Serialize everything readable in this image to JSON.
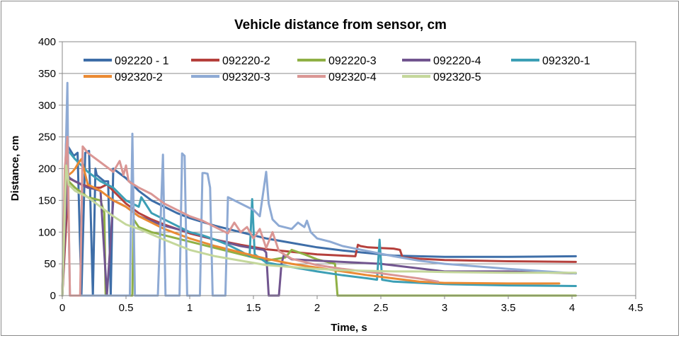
{
  "chart_data": {
    "type": "line",
    "title": "Vehicle distance from sensor, cm",
    "xlabel": "Time, s",
    "ylabel": "Distance, cm",
    "xlim": [
      0,
      4.5
    ],
    "ylim": [
      0,
      400
    ],
    "xticks": [
      "0",
      "0.5",
      "1",
      "1.5",
      "2",
      "2.5",
      "3",
      "3.5",
      "4",
      "4.5"
    ],
    "yticks": [
      "0",
      "50",
      "100",
      "150",
      "200",
      "250",
      "300",
      "350",
      "400"
    ],
    "grid": "horizontal major gridlines",
    "legend_position": "top, inside plot",
    "series": [
      {
        "name": "092220 - 1",
        "color": "#3e6ea8",
        "x": [
          0,
          0.03,
          0.06,
          0.09,
          0.12,
          0.15,
          0.18,
          0.21,
          0.24,
          0.26,
          0.27,
          0.3,
          0.33,
          0.36,
          0.38,
          0.4,
          0.5,
          0.6,
          0.7,
          0.8,
          0.9,
          1.0,
          1.2,
          1.4,
          1.6,
          1.8,
          2.0,
          2.2,
          2.4,
          2.6,
          3.0,
          3.5,
          4.03
        ],
        "y": [
          0,
          240,
          230,
          220,
          225,
          0,
          225,
          228,
          0,
          200,
          190,
          185,
          180,
          180,
          0,
          200,
          185,
          165,
          150,
          140,
          130,
          122,
          110,
          100,
          90,
          83,
          76,
          71,
          67,
          63,
          61,
          61,
          62
        ]
      },
      {
        "name": "092220-2",
        "color": "#b5403c",
        "x": [
          0,
          0.05,
          0.1,
          0.15,
          0.2,
          0.25,
          0.3,
          0.35,
          0.4,
          0.5,
          0.6,
          0.7,
          0.8,
          1.0,
          1.2,
          1.4,
          1.6,
          1.8,
          2.0,
          2.2,
          2.3,
          2.32,
          2.34,
          2.4,
          2.5,
          2.6,
          2.65,
          2.67,
          2.8,
          3.0,
          3.5,
          4.03
        ],
        "y": [
          0,
          185,
          180,
          175,
          172,
          170,
          170,
          175,
          165,
          145,
          130,
          120,
          112,
          98,
          88,
          80,
          73,
          69,
          65,
          63,
          62,
          80,
          78,
          76,
          75,
          74,
          72,
          60,
          58,
          56,
          54,
          53
        ]
      },
      {
        "name": "092220-3",
        "color": "#8fb045",
        "x": [
          0,
          0.03,
          0.05,
          0.1,
          0.2,
          0.3,
          0.33,
          0.34,
          0.55,
          0.56,
          0.6,
          0.7,
          0.8,
          1.0,
          1.2,
          1.4,
          1.6,
          1.75,
          1.8,
          1.9,
          2.0,
          2.1,
          2.14,
          2.16,
          2.5,
          3.0,
          3.5,
          4.03
        ],
        "y": [
          0,
          210,
          180,
          170,
          155,
          150,
          130,
          0,
          0,
          120,
          108,
          100,
          95,
          85,
          75,
          65,
          55,
          60,
          72,
          65,
          57,
          52,
          50,
          0,
          0,
          0,
          0,
          0
        ]
      },
      {
        "name": "092220-4",
        "color": "#71558f",
        "x": [
          0,
          0.04,
          0.06,
          0.1,
          0.15,
          0.2,
          0.25,
          0.3,
          0.35,
          0.4,
          0.5,
          0.6,
          0.8,
          1.0,
          1.2,
          1.4,
          1.58,
          1.6,
          1.62,
          1.7,
          1.72,
          1.74,
          1.8,
          2.0,
          2.5,
          3.0,
          3.5,
          4.03
        ],
        "y": [
          0,
          190,
          185,
          180,
          175,
          170,
          168,
          165,
          0,
          150,
          140,
          125,
          110,
          100,
          88,
          78,
          72,
          68,
          0,
          0,
          50,
          65,
          57,
          55,
          50,
          38,
          38,
          35
        ]
      },
      {
        "name": "092320-1",
        "color": "#3c9fb5",
        "x": [
          0,
          0.03,
          0.06,
          0.1,
          0.15,
          0.2,
          0.3,
          0.4,
          0.5,
          0.6,
          0.62,
          0.7,
          0.8,
          0.9,
          1.0,
          1.1,
          1.2,
          1.3,
          1.4,
          1.47,
          1.49,
          1.51,
          1.6,
          1.8,
          2.0,
          2.2,
          2.4,
          2.47,
          2.49,
          2.51,
          2.6,
          3.0,
          3.5,
          4.03
        ],
        "y": [
          0,
          230,
          225,
          215,
          205,
          195,
          180,
          170,
          150,
          140,
          155,
          130,
          120,
          110,
          100,
          95,
          88,
          80,
          70,
          62,
          152,
          65,
          52,
          45,
          38,
          32,
          27,
          25,
          88,
          25,
          22,
          18,
          16,
          15
        ]
      },
      {
        "name": "092320-2",
        "color": "#ea8a33",
        "x": [
          0,
          0.03,
          0.05,
          0.08,
          0.1,
          0.13,
          0.15,
          0.2,
          0.3,
          0.4,
          0.5,
          0.6,
          0.8,
          1.0,
          1.2,
          1.4,
          1.6,
          1.8,
          2.0,
          2.2,
          2.4,
          2.6,
          2.8,
          3.0,
          3.5,
          3.9
        ],
        "y": [
          0,
          200,
          190,
          195,
          200,
          210,
          215,
          175,
          165,
          150,
          140,
          125,
          105,
          90,
          78,
          68,
          58,
          50,
          44,
          38,
          32,
          27,
          22,
          20,
          19,
          19
        ]
      },
      {
        "name": "092320-3",
        "color": "#8eaad4",
        "x": [
          0,
          0.02,
          0.04,
          0.05,
          0.06,
          0.08,
          0.45,
          0.53,
          0.55,
          0.57,
          0.75,
          0.79,
          0.81,
          0.86,
          0.92,
          0.94,
          0.96,
          0.98,
          1.08,
          1.1,
          1.12,
          1.14,
          1.16,
          1.18,
          1.22,
          1.24,
          1.26,
          1.28,
          1.3,
          1.35,
          1.4,
          1.45,
          1.5,
          1.55,
          1.6,
          1.62,
          1.65,
          1.7,
          1.8,
          1.85,
          1.9,
          1.92,
          1.95,
          2.0,
          2.1,
          2.2,
          2.4,
          2.6,
          2.8,
          3.0,
          3.5,
          4.03
        ],
        "y": [
          0,
          160,
          335,
          120,
          0,
          0,
          0,
          0,
          255,
          0,
          0,
          222,
          0,
          0,
          0,
          224,
          220,
          0,
          0,
          193,
          193,
          192,
          170,
          0,
          0,
          0,
          0,
          0,
          155,
          150,
          145,
          140,
          135,
          125,
          195,
          145,
          120,
          110,
          105,
          115,
          108,
          118,
          100,
          90,
          85,
          78,
          70,
          62,
          55,
          50,
          42,
          35
        ]
      },
      {
        "name": "092320-4",
        "color": "#da9694",
        "x": [
          0,
          0.02,
          0.04,
          0.06,
          0.08,
          0.1,
          0.12,
          0.14,
          0.16,
          0.2,
          0.3,
          0.4,
          0.45,
          0.48,
          0.5,
          0.52,
          0.6,
          0.7,
          0.8,
          0.9,
          1.0,
          1.1,
          1.2,
          1.3,
          1.35,
          1.4,
          1.45,
          1.5,
          1.55,
          1.6,
          1.65,
          1.7,
          1.8,
          2.0,
          2.2,
          2.5,
          2.8,
          2.95
        ],
        "y": [
          0,
          200,
          250,
          0,
          0,
          0,
          0,
          0,
          235,
          225,
          210,
          195,
          212,
          190,
          205,
          180,
          170,
          160,
          145,
          135,
          125,
          118,
          108,
          98,
          115,
          100,
          108,
          90,
          105,
          75,
          100,
          70,
          58,
          48,
          42,
          35,
          27,
          22
        ]
      },
      {
        "name": "092320-5",
        "color": "#c4d79b",
        "x": [
          0,
          0.03,
          0.05,
          0.1,
          0.15,
          0.2,
          0.3,
          0.4,
          0.5,
          0.6,
          0.8,
          1.0,
          1.2,
          1.4,
          1.6,
          1.8,
          2.0,
          2.2,
          2.4,
          2.6,
          2.8,
          3.0,
          3.5,
          4.03
        ],
        "y": [
          0,
          205,
          175,
          165,
          160,
          155,
          140,
          125,
          112,
          105,
          88,
          72,
          62,
          55,
          48,
          45,
          42,
          40,
          39,
          38,
          38,
          37,
          36,
          36
        ]
      }
    ]
  }
}
